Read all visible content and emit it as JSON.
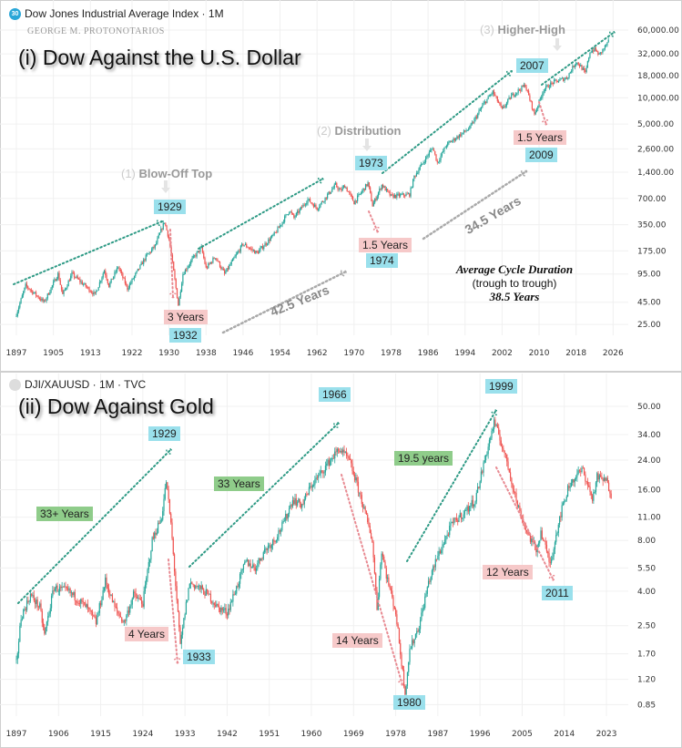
{
  "chart_data": [
    {
      "type": "candlestick",
      "header": "Dow Jones Industrial Average Index · 1M",
      "badge": "30",
      "author": "GEORGE M. PROTONOTARIOS",
      "title": "(i) Dow Against the U.S. Dollar",
      "y_scale": "log",
      "yticks": [
        "60,000.00",
        "32,000.00",
        "18,000.00",
        "10,000.00",
        "5,000.00",
        "2,600.00",
        "1,400.00",
        "700.00",
        "350.00",
        "175.00",
        "95.00",
        "45.00",
        "25.00"
      ],
      "ytick_values": [
        60000,
        32000,
        18000,
        10000,
        5000,
        2600,
        1400,
        700,
        350,
        175,
        95,
        45,
        25
      ],
      "xticks": [
        "1897",
        "1905",
        "1913",
        "1922",
        "1930",
        "1938",
        "1946",
        "1954",
        "1962",
        "1970",
        "1978",
        "1986",
        "1994",
        "2002",
        "2010",
        "2018",
        "2026"
      ],
      "xlim": [
        1897,
        2026
      ],
      "grid": true,
      "series": [
        [
          1897,
          33
        ],
        [
          1899,
          70
        ],
        [
          1903,
          45
        ],
        [
          1906,
          95
        ],
        [
          1907,
          55
        ],
        [
          1909,
          95
        ],
        [
          1914,
          55
        ],
        [
          1916,
          105
        ],
        [
          1917,
          70
        ],
        [
          1919,
          115
        ],
        [
          1921,
          65
        ],
        [
          1925,
          150
        ],
        [
          1927,
          200
        ],
        [
          1929,
          380
        ],
        [
          1930,
          240
        ],
        [
          1932,
          42
        ],
        [
          1933,
          95
        ],
        [
          1935,
          140
        ],
        [
          1937,
          190
        ],
        [
          1938,
          110
        ],
        [
          1940,
          150
        ],
        [
          1942,
          95
        ],
        [
          1946,
          210
        ],
        [
          1949,
          165
        ],
        [
          1953,
          280
        ],
        [
          1956,
          510
        ],
        [
          1957,
          420
        ],
        [
          1960,
          680
        ],
        [
          1962,
          540
        ],
        [
          1966,
          1000
        ],
        [
          1967,
          850
        ],
        [
          1968,
          980
        ],
        [
          1970,
          630
        ],
        [
          1973,
          1050
        ],
        [
          1974,
          580
        ],
        [
          1976,
          1000
        ],
        [
          1978,
          740
        ],
        [
          1982,
          780
        ],
        [
          1983,
          1250
        ],
        [
          1987,
          2700
        ],
        [
          1988,
          1800
        ],
        [
          1990,
          2900
        ],
        [
          1995,
          4500
        ],
        [
          1998,
          8500
        ],
        [
          2000,
          11700
        ],
        [
          2002,
          7300
        ],
        [
          2004,
          10500
        ],
        [
          2007,
          14000
        ],
        [
          2009,
          6500
        ],
        [
          2011,
          12500
        ],
        [
          2013,
          15000
        ],
        [
          2016,
          17000
        ],
        [
          2018,
          26000
        ],
        [
          2019,
          23000
        ],
        [
          2020,
          19000
        ],
        [
          2021,
          34000
        ],
        [
          2022,
          36000
        ],
        [
          2023,
          31000
        ],
        [
          2025,
          44000
        ]
      ],
      "annotations": {
        "phase1_num": "(1)",
        "phase1": "Blow-Off Top",
        "phase2_num": "(2)",
        "phase2": "Distribution",
        "phase3_num": "(3)",
        "phase3": "Higher-High",
        "peaks": [
          "1929",
          "1973",
          "2007"
        ],
        "troughs": [
          "1932",
          "1974",
          "2009"
        ],
        "declines": [
          "3 Years",
          "1.5 Years",
          "1.5 Years"
        ],
        "cycles": [
          "42.5 Years",
          "34.5 Years"
        ],
        "avg_title": "Average Cycle Duration",
        "avg_sub": "(trough to trough)",
        "avg_value": "38.5 Years"
      }
    },
    {
      "type": "candlestick",
      "header": "DJI/XAUUSD · 1M · TVC",
      "title": "(ii) Dow Against Gold",
      "y_scale": "log",
      "yticks": [
        "50.00",
        "34.00",
        "24.00",
        "16.00",
        "11.00",
        "8.00",
        "5.50",
        "4.00",
        "2.50",
        "1.70",
        "1.20",
        "0.85"
      ],
      "ytick_values": [
        50,
        34,
        24,
        16,
        11,
        8,
        5.5,
        4,
        2.5,
        1.7,
        1.2,
        0.85
      ],
      "xticks": [
        "1897",
        "1906",
        "1915",
        "1924",
        "1933",
        "1942",
        "1951",
        "1960",
        "1969",
        "1978",
        "1987",
        "1996",
        "2005",
        "2014",
        "2023"
      ],
      "xlim": [
        1897,
        2025
      ],
      "grid": true,
      "series": [
        [
          1897,
          1.5
        ],
        [
          1898,
          2.8
        ],
        [
          1900,
          3.8
        ],
        [
          1902,
          3.2
        ],
        [
          1903,
          2.2
        ],
        [
          1905,
          4.2
        ],
        [
          1908,
          4.0
        ],
        [
          1910,
          3.6
        ],
        [
          1912,
          3.2
        ],
        [
          1914,
          2.6
        ],
        [
          1916,
          4.6
        ],
        [
          1918,
          3.2
        ],
        [
          1920,
          2.6
        ],
        [
          1922,
          3.8
        ],
        [
          1924,
          3.4
        ],
        [
          1926,
          8
        ],
        [
          1928,
          11
        ],
        [
          1929,
          18
        ],
        [
          1930,
          10
        ],
        [
          1932,
          1.9
        ],
        [
          1933,
          3
        ],
        [
          1934,
          4.5
        ],
        [
          1936,
          4.2
        ],
        [
          1938,
          3.8
        ],
        [
          1940,
          3.2
        ],
        [
          1942,
          3.0
        ],
        [
          1944,
          4.2
        ],
        [
          1946,
          6
        ],
        [
          1948,
          5.5
        ],
        [
          1950,
          7
        ],
        [
          1952,
          8
        ],
        [
          1954,
          10
        ],
        [
          1956,
          14
        ],
        [
          1958,
          13
        ],
        [
          1960,
          17
        ],
        [
          1962,
          20
        ],
        [
          1964,
          24
        ],
        [
          1966,
          28
        ],
        [
          1968,
          24
        ],
        [
          1969,
          20
        ],
        [
          1971,
          13
        ],
        [
          1973,
          8
        ],
        [
          1974,
          3.2
        ],
        [
          1975,
          7
        ],
        [
          1976,
          5
        ],
        [
          1978,
          3
        ],
        [
          1980,
          1.0
        ],
        [
          1981,
          1.8
        ],
        [
          1983,
          2.5
        ],
        [
          1985,
          4.5
        ],
        [
          1987,
          6.5
        ],
        [
          1990,
          10
        ],
        [
          1993,
          12
        ],
        [
          1995,
          14
        ],
        [
          1997,
          24
        ],
        [
          1999,
          40
        ],
        [
          2000,
          34
        ],
        [
          2002,
          22
        ],
        [
          2004,
          13
        ],
        [
          2006,
          9
        ],
        [
          2008,
          7
        ],
        [
          2009,
          9
        ],
        [
          2011,
          5.8
        ],
        [
          2013,
          11
        ],
        [
          2015,
          17
        ],
        [
          2017,
          20
        ],
        [
          2018,
          21
        ],
        [
          2020,
          14
        ],
        [
          2021,
          19
        ],
        [
          2023,
          18
        ],
        [
          2024,
          15
        ]
      ],
      "annotations": {
        "peaks": [
          "1929",
          "1966",
          "1999"
        ],
        "troughs": [
          "1933",
          "1980",
          "2011"
        ],
        "advances": [
          "33+ Years",
          "33 Years",
          "19.5 years"
        ],
        "declines": [
          "4 Years",
          "14 Years",
          "12 Years"
        ]
      }
    }
  ],
  "colors": {
    "up": "#26a69a",
    "down": "#ef5350",
    "trend": "#2e9a85",
    "decline": "#e88a92",
    "label_cyan": "#9ae0ec",
    "label_pink": "#f6c9c9",
    "label_green": "#8fcc8a"
  }
}
